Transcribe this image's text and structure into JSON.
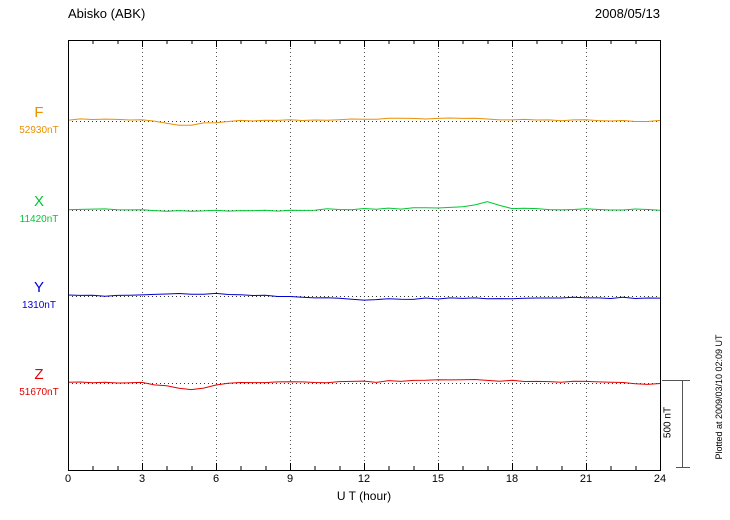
{
  "chart_data": {
    "type": "line",
    "title": "Abisko (ABK)",
    "date": "2008/05/13",
    "xlabel": "U T (hour)",
    "x_range": [
      0,
      24
    ],
    "x_ticks": [
      0,
      3,
      6,
      9,
      12,
      15,
      18,
      21,
      24
    ],
    "x_step_hours": 0.5,
    "grid": "vertical dotted lines every 3 hours; dotted horizontal baseline per channel",
    "legend_position": "left-margin channel labels",
    "scale_bar": {
      "label": "500 nT",
      "nT": 500
    },
    "annotation": "Plotted at 2009/03/10 02:09 UT",
    "series": [
      {
        "name": "F",
        "baseline_nT": 52930,
        "baseline_label": "52930nT",
        "color": "#e89000",
        "deviation_nT": [
          8,
          8,
          9,
          10,
          9,
          7,
          4,
          -2,
          -12,
          -20,
          -22,
          -14,
          -6,
          0,
          3,
          4,
          4,
          5,
          5,
          5,
          6,
          6,
          7,
          8,
          9,
          10,
          11,
          13,
          14,
          16,
          17,
          15,
          14,
          13,
          12,
          11,
          10,
          9,
          8,
          7,
          6,
          6,
          5,
          4,
          3,
          1,
          -3,
          -6,
          0
        ]
      },
      {
        "name": "X",
        "baseline_nT": 11420,
        "baseline_label": "11420nT",
        "color": "#00c832",
        "deviation_nT": [
          4,
          4,
          5,
          4,
          4,
          3,
          1,
          -3,
          -7,
          -8,
          -6,
          -4,
          -2,
          -3,
          -5,
          -5,
          -4,
          -2,
          0,
          1,
          2,
          3,
          4,
          5,
          6,
          7,
          8,
          9,
          10,
          11,
          12,
          14,
          18,
          30,
          44,
          28,
          12,
          8,
          6,
          5,
          4,
          4,
          3,
          3,
          3,
          2,
          2,
          2,
          3
        ]
      },
      {
        "name": "Y",
        "baseline_nT": 1310,
        "baseline_label": "1310nT",
        "color": "#0000d2",
        "deviation_nT": [
          2,
          2,
          3,
          3,
          4,
          5,
          7,
          10,
          12,
          13,
          14,
          13,
          12,
          11,
          9,
          7,
          4,
          1,
          -3,
          -7,
          -11,
          -14,
          -17,
          -19,
          -20,
          -20,
          -19,
          -18,
          -17,
          -16,
          -16,
          -15,
          -15,
          -14,
          -14,
          -13,
          -13,
          -13,
          -12,
          -12,
          -12,
          -11,
          -11,
          -11,
          -10,
          -10,
          -10,
          -10,
          -10
        ]
      },
      {
        "name": "Z",
        "baseline_nT": 51670,
        "baseline_label": "51670nT",
        "color": "#e60000",
        "deviation_nT": [
          4,
          4,
          5,
          5,
          4,
          3,
          0,
          -8,
          -20,
          -32,
          -36,
          -28,
          -15,
          -5,
          0,
          2,
          2,
          3,
          3,
          3,
          4,
          4,
          5,
          6,
          7,
          8,
          10,
          12,
          14,
          18,
          22,
          18,
          16,
          19,
          17,
          14,
          12,
          10,
          8,
          7,
          6,
          6,
          5,
          4,
          3,
          1,
          -6,
          -9,
          -2
        ]
      }
    ]
  }
}
